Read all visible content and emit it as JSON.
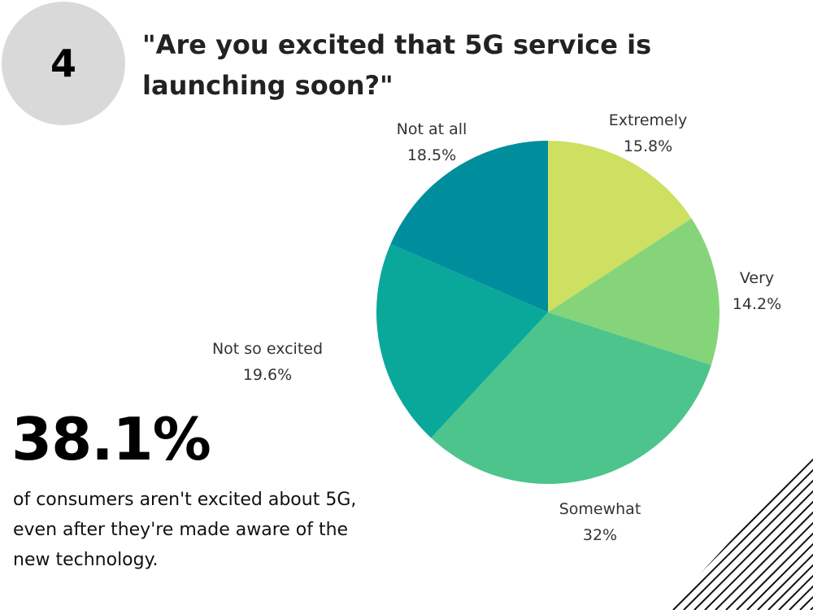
{
  "badge": {
    "number": "4"
  },
  "title": "\"Are you excited that 5G service is launching soon?\"",
  "stat": {
    "value": "38.1%",
    "description": "of consumers aren't excited about 5G, even after they're made aware of the new technology."
  },
  "chart_data": {
    "type": "pie",
    "title": "",
    "start_angle_deg": 0,
    "direction": "clockwise",
    "slices": [
      {
        "label": "Extremely",
        "value": 15.8,
        "display": "15.8%",
        "color": "#cde062"
      },
      {
        "label": "Very",
        "value": 14.2,
        "display": "14.2%",
        "color": "#85d479"
      },
      {
        "label": "Somewhat",
        "value": 32,
        "display": "32%",
        "color": "#4cc48c"
      },
      {
        "label": "Not so excited",
        "value": 19.6,
        "display": "19.6%",
        "color": "#0aa89a"
      },
      {
        "label": "Not at all",
        "value": 18.5,
        "display": "18.5%",
        "color": "#018e9c"
      }
    ]
  }
}
